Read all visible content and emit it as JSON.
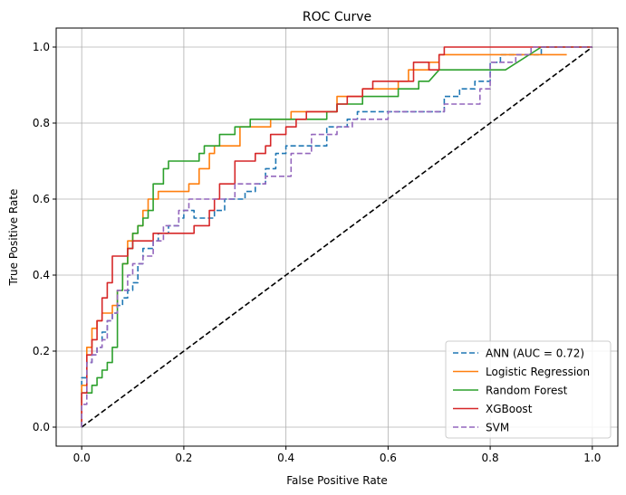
{
  "chart_data": {
    "type": "line",
    "title": "ROC Curve",
    "xlabel": "False Positive Rate",
    "ylabel": "True Positive Rate",
    "xlim": [
      -0.05,
      1.05
    ],
    "ylim": [
      -0.05,
      1.05
    ],
    "xticks": [
      0.0,
      0.2,
      0.4,
      0.6,
      0.8,
      1.0
    ],
    "yticks": [
      0.0,
      0.2,
      0.4,
      0.6,
      0.8,
      1.0
    ],
    "xtick_labels": [
      "0.0",
      "0.2",
      "0.4",
      "0.6",
      "0.8",
      "1.0"
    ],
    "ytick_labels": [
      "0.0",
      "0.2",
      "0.4",
      "0.6",
      "0.8",
      "1.0"
    ],
    "grid": true,
    "legend_position": "lower right",
    "diagonal": {
      "color": "#000000",
      "dash": "dashed",
      "x": [
        0,
        1
      ],
      "y": [
        0,
        1
      ]
    },
    "series": [
      {
        "name": "ANN (AUC = 0.72)",
        "color": "#1f77b4",
        "dash": "dashed",
        "x": [
          0.0,
          0.0,
          0.01,
          0.01,
          0.02,
          0.02,
          0.03,
          0.03,
          0.04,
          0.04,
          0.05,
          0.05,
          0.06,
          0.06,
          0.07,
          0.07,
          0.08,
          0.08,
          0.09,
          0.09,
          0.1,
          0.1,
          0.11,
          0.11,
          0.12,
          0.12,
          0.14,
          0.14,
          0.15,
          0.15,
          0.17,
          0.17,
          0.19,
          0.19,
          0.2,
          0.2,
          0.22,
          0.22,
          0.26,
          0.26,
          0.28,
          0.28,
          0.32,
          0.32,
          0.34,
          0.34,
          0.36,
          0.36,
          0.38,
          0.38,
          0.4,
          0.4,
          0.48,
          0.48,
          0.52,
          0.52,
          0.54,
          0.54,
          0.71,
          0.71,
          0.74,
          0.74,
          0.77,
          0.77,
          0.8,
          0.8,
          0.82,
          0.82,
          0.9,
          0.9,
          1.0
        ],
        "y": [
          0.0,
          0.13,
          0.13,
          0.17,
          0.17,
          0.19,
          0.19,
          0.21,
          0.21,
          0.25,
          0.25,
          0.28,
          0.28,
          0.3,
          0.3,
          0.32,
          0.32,
          0.34,
          0.34,
          0.36,
          0.36,
          0.38,
          0.38,
          0.43,
          0.43,
          0.47,
          0.47,
          0.49,
          0.49,
          0.51,
          0.51,
          0.53,
          0.53,
          0.55,
          0.55,
          0.57,
          0.57,
          0.55,
          0.55,
          0.57,
          0.57,
          0.6,
          0.6,
          0.62,
          0.62,
          0.64,
          0.64,
          0.68,
          0.68,
          0.72,
          0.72,
          0.74,
          0.74,
          0.79,
          0.79,
          0.81,
          0.81,
          0.83,
          0.83,
          0.87,
          0.87,
          0.89,
          0.89,
          0.91,
          0.91,
          0.96,
          0.96,
          0.98,
          0.98,
          1.0,
          1.0
        ]
      },
      {
        "name": "Logistic Regression",
        "color": "#ff7f0e",
        "dash": "solid",
        "x": [
          0.0,
          0.0,
          0.01,
          0.01,
          0.02,
          0.02,
          0.03,
          0.03,
          0.04,
          0.04,
          0.05,
          0.05,
          0.06,
          0.06,
          0.07,
          0.07,
          0.08,
          0.08,
          0.09,
          0.09,
          0.1,
          0.1,
          0.11,
          0.11,
          0.12,
          0.12,
          0.13,
          0.13,
          0.15,
          0.15,
          0.21,
          0.21,
          0.23,
          0.23,
          0.25,
          0.25,
          0.26,
          0.26,
          0.31,
          0.31,
          0.37,
          0.37,
          0.41,
          0.41,
          0.5,
          0.5,
          0.55,
          0.55,
          0.62,
          0.62,
          0.64,
          0.64,
          0.68,
          0.68,
          0.7,
          0.7,
          0.75,
          0.75,
          0.89,
          0.89,
          0.95
        ],
        "y": [
          0.0,
          0.11,
          0.11,
          0.21,
          0.21,
          0.26,
          0.26,
          0.28,
          0.28,
          0.3,
          0.3,
          0.3,
          0.3,
          0.32,
          0.32,
          0.36,
          0.36,
          0.43,
          0.43,
          0.49,
          0.49,
          0.51,
          0.51,
          0.53,
          0.53,
          0.57,
          0.57,
          0.6,
          0.6,
          0.62,
          0.62,
          0.64,
          0.64,
          0.68,
          0.68,
          0.72,
          0.72,
          0.74,
          0.74,
          0.79,
          0.79,
          0.81,
          0.81,
          0.83,
          0.83,
          0.87,
          0.87,
          0.89,
          0.89,
          0.91,
          0.91,
          0.94,
          0.94,
          0.96,
          0.96,
          0.98,
          0.98,
          0.98,
          0.98,
          0.98,
          0.98
        ]
      },
      {
        "name": "Random Forest",
        "color": "#2ca02c",
        "dash": "solid",
        "x": [
          0.0,
          0.0,
          0.02,
          0.02,
          0.03,
          0.03,
          0.04,
          0.04,
          0.05,
          0.05,
          0.06,
          0.06,
          0.07,
          0.07,
          0.08,
          0.08,
          0.09,
          0.09,
          0.1,
          0.1,
          0.11,
          0.11,
          0.12,
          0.12,
          0.13,
          0.13,
          0.14,
          0.14,
          0.16,
          0.16,
          0.17,
          0.17,
          0.23,
          0.23,
          0.24,
          0.24,
          0.26,
          0.26,
          0.27,
          0.27,
          0.3,
          0.3,
          0.33,
          0.33,
          0.42,
          0.42,
          0.48,
          0.48,
          0.5,
          0.5,
          0.55,
          0.55,
          0.62,
          0.62,
          0.66,
          0.66,
          0.68,
          0.7,
          0.7,
          0.83,
          0.9,
          1.0
        ],
        "y": [
          0.0,
          0.09,
          0.09,
          0.11,
          0.11,
          0.13,
          0.13,
          0.15,
          0.15,
          0.17,
          0.17,
          0.21,
          0.21,
          0.36,
          0.36,
          0.43,
          0.43,
          0.47,
          0.47,
          0.51,
          0.51,
          0.53,
          0.53,
          0.55,
          0.55,
          0.57,
          0.57,
          0.64,
          0.64,
          0.68,
          0.68,
          0.7,
          0.7,
          0.72,
          0.72,
          0.74,
          0.74,
          0.74,
          0.74,
          0.77,
          0.77,
          0.79,
          0.79,
          0.81,
          0.81,
          0.81,
          0.81,
          0.83,
          0.83,
          0.85,
          0.85,
          0.87,
          0.87,
          0.89,
          0.89,
          0.91,
          0.91,
          0.94,
          0.94,
          0.94,
          1.0,
          1.0
        ]
      },
      {
        "name": "XGBoost",
        "color": "#d62728",
        "dash": "solid",
        "x": [
          0.0,
          0.0,
          0.01,
          0.01,
          0.02,
          0.02,
          0.03,
          0.03,
          0.04,
          0.04,
          0.05,
          0.05,
          0.06,
          0.06,
          0.09,
          0.09,
          0.1,
          0.1,
          0.12,
          0.12,
          0.14,
          0.14,
          0.16,
          0.16,
          0.22,
          0.22,
          0.25,
          0.25,
          0.26,
          0.26,
          0.27,
          0.27,
          0.3,
          0.3,
          0.34,
          0.34,
          0.36,
          0.36,
          0.37,
          0.37,
          0.4,
          0.4,
          0.42,
          0.42,
          0.44,
          0.44,
          0.5,
          0.5,
          0.52,
          0.52,
          0.55,
          0.55,
          0.57,
          0.57,
          0.65,
          0.65,
          0.68,
          0.68,
          0.7,
          0.7,
          0.71,
          0.71,
          1.0
        ],
        "y": [
          0.0,
          0.09,
          0.09,
          0.19,
          0.19,
          0.23,
          0.23,
          0.28,
          0.28,
          0.34,
          0.34,
          0.38,
          0.38,
          0.45,
          0.45,
          0.47,
          0.47,
          0.49,
          0.49,
          0.49,
          0.49,
          0.51,
          0.51,
          0.51,
          0.51,
          0.53,
          0.53,
          0.57,
          0.57,
          0.6,
          0.6,
          0.64,
          0.64,
          0.7,
          0.7,
          0.72,
          0.72,
          0.74,
          0.74,
          0.77,
          0.77,
          0.79,
          0.79,
          0.81,
          0.81,
          0.83,
          0.83,
          0.85,
          0.85,
          0.87,
          0.87,
          0.89,
          0.89,
          0.91,
          0.91,
          0.96,
          0.96,
          0.94,
          0.94,
          0.98,
          0.98,
          1.0,
          1.0
        ]
      },
      {
        "name": "SVM",
        "color": "#9467bd",
        "dash": "dashed",
        "x": [
          0.0,
          0.0,
          0.01,
          0.01,
          0.02,
          0.02,
          0.03,
          0.03,
          0.04,
          0.04,
          0.05,
          0.05,
          0.06,
          0.06,
          0.07,
          0.07,
          0.09,
          0.09,
          0.1,
          0.1,
          0.12,
          0.12,
          0.14,
          0.14,
          0.16,
          0.16,
          0.19,
          0.19,
          0.21,
          0.21,
          0.3,
          0.3,
          0.36,
          0.36,
          0.41,
          0.41,
          0.45,
          0.45,
          0.5,
          0.5,
          0.53,
          0.53,
          0.6,
          0.6,
          0.71,
          0.71,
          0.78,
          0.78,
          0.8,
          0.8,
          0.85,
          0.85,
          0.88,
          0.88,
          1.0
        ],
        "y": [
          0.0,
          0.06,
          0.06,
          0.17,
          0.17,
          0.19,
          0.19,
          0.21,
          0.21,
          0.23,
          0.23,
          0.28,
          0.28,
          0.3,
          0.3,
          0.36,
          0.36,
          0.4,
          0.4,
          0.43,
          0.43,
          0.45,
          0.45,
          0.49,
          0.49,
          0.53,
          0.53,
          0.57,
          0.57,
          0.6,
          0.6,
          0.64,
          0.64,
          0.66,
          0.66,
          0.72,
          0.72,
          0.77,
          0.77,
          0.79,
          0.79,
          0.81,
          0.81,
          0.83,
          0.83,
          0.85,
          0.85,
          0.89,
          0.89,
          0.96,
          0.96,
          0.98,
          0.98,
          1.0,
          1.0
        ]
      }
    ]
  }
}
